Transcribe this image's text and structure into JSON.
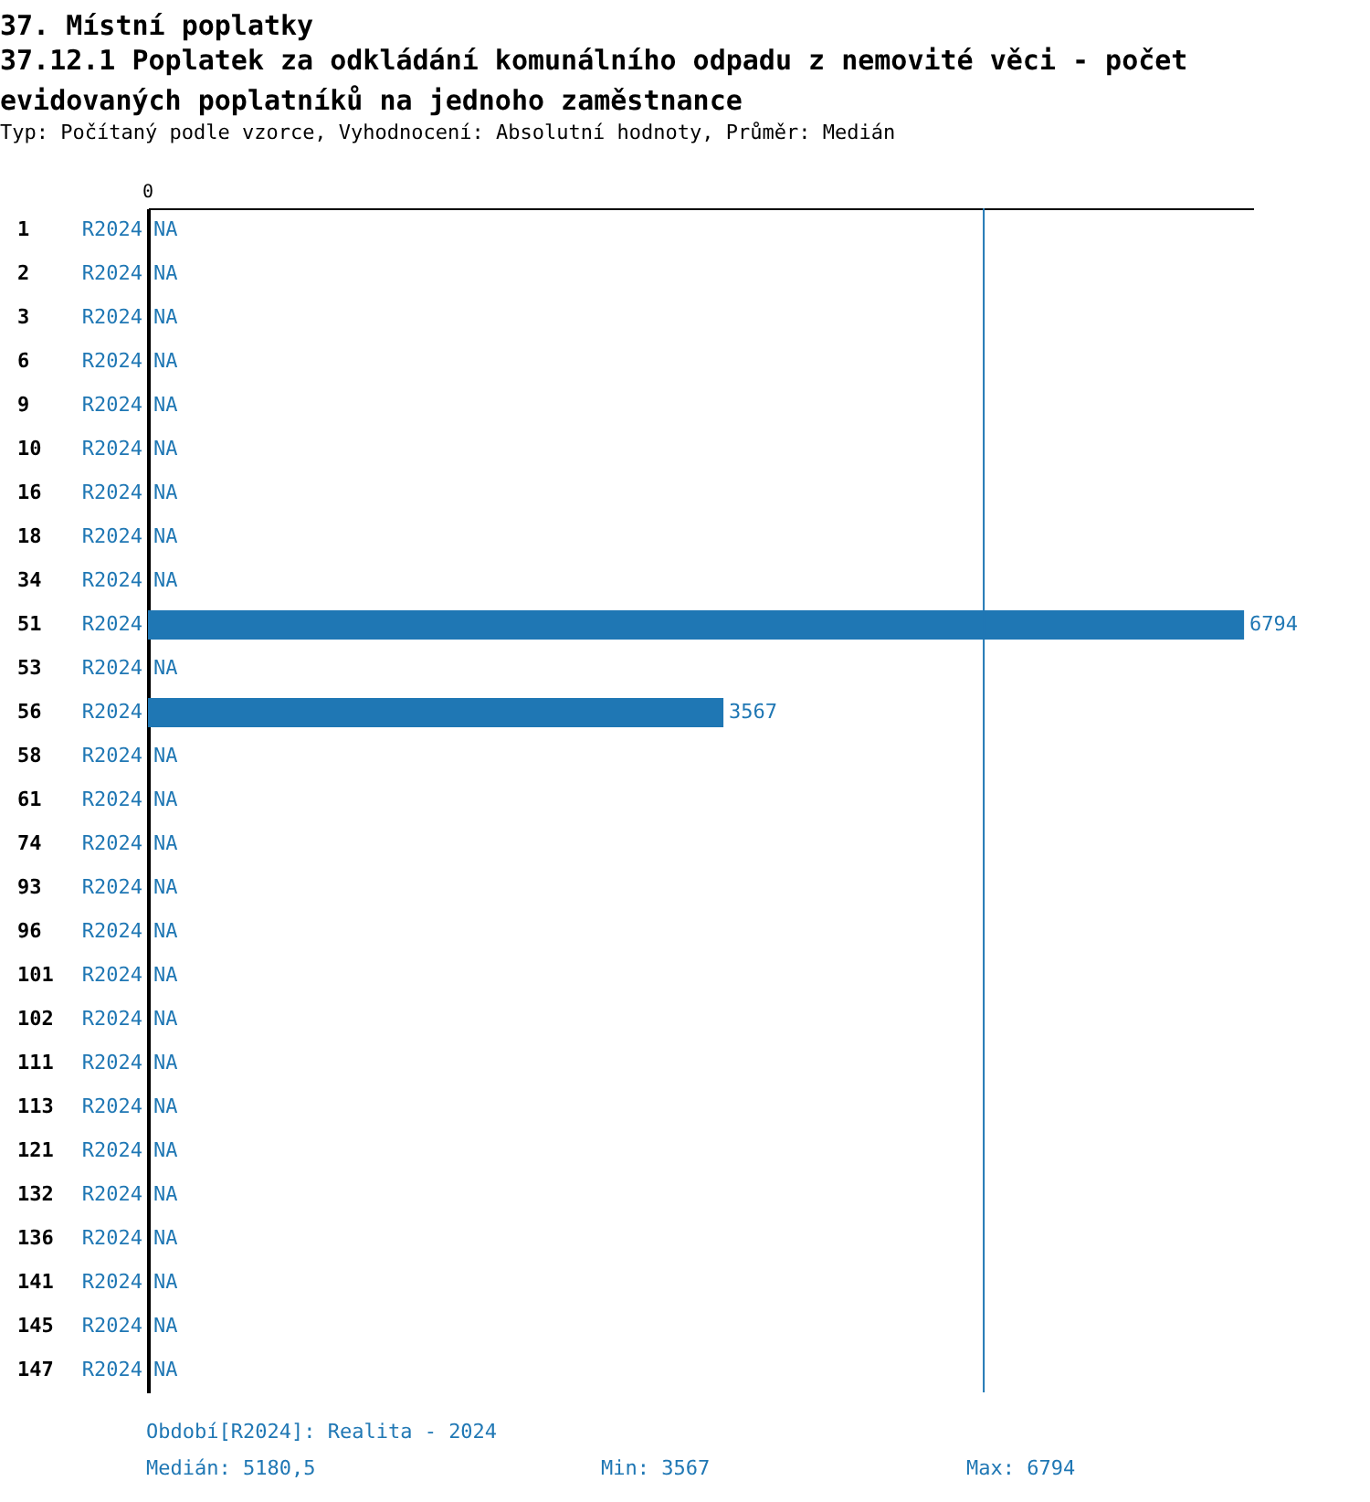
{
  "chart_data": {
    "type": "bar",
    "orientation": "horizontal",
    "title": "37. Místní poplatky",
    "subtitle": "37.12.1 Poplatek za odkládání komunálního odpadu z nemovité věci - počet evidovaných poplatníků na jednoho zaměstnance",
    "categories": [
      "1",
      "2",
      "3",
      "6",
      "9",
      "10",
      "16",
      "18",
      "34",
      "51",
      "53",
      "56",
      "58",
      "61",
      "74",
      "93",
      "96",
      "101",
      "102",
      "111",
      "113",
      "121",
      "132",
      "136",
      "141",
      "145",
      "147"
    ],
    "series": [
      {
        "name": "R2024",
        "color": "#1f77b4",
        "values": [
          null,
          null,
          null,
          null,
          null,
          null,
          null,
          null,
          null,
          6794,
          null,
          3567,
          null,
          null,
          null,
          null,
          null,
          null,
          null,
          null,
          null,
          null,
          null,
          null,
          null,
          null,
          null
        ],
        "value_labels": [
          "NA",
          "NA",
          "NA",
          "NA",
          "NA",
          "NA",
          "NA",
          "NA",
          "NA",
          "6794",
          "NA",
          "3567",
          "NA",
          "NA",
          "NA",
          "NA",
          "NA",
          "NA",
          "NA",
          "NA",
          "NA",
          "NA",
          "NA",
          "NA",
          "NA",
          "NA",
          "NA"
        ]
      }
    ],
    "xlim": [
      0,
      6850
    ],
    "ref_lines": [
      {
        "axis": "x",
        "value": 5180.5,
        "color": "#1f77b4"
      }
    ],
    "annotations": [
      "Typ: Počítaný podle vzorce, Vyhodnocení: Absolutní hodnoty, Průměr: Medián",
      "0",
      "Období[R2024]: Realita - 2024",
      "Medián: 5180,5",
      "Min: 3567",
      "Max: 6794"
    ],
    "grid": false,
    "legend": false
  }
}
